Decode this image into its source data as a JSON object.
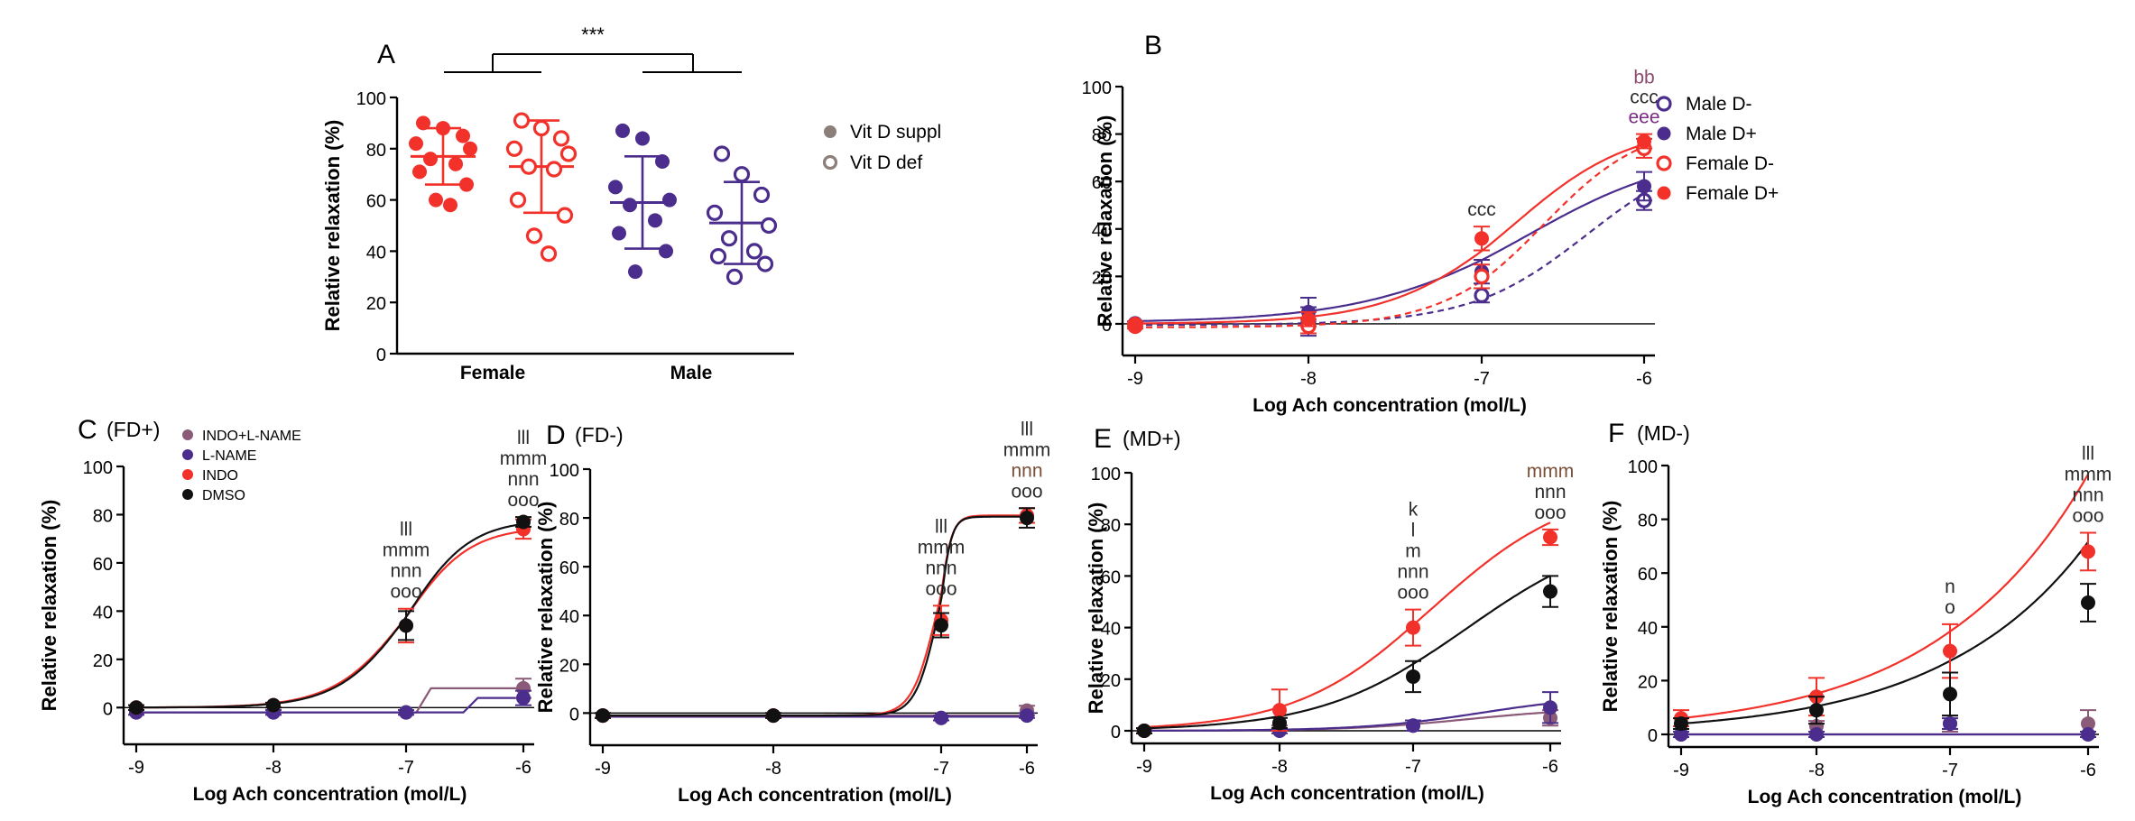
{
  "colors": {
    "red": "#f2312a",
    "purple": "#4a2d8c",
    "black": "#111111",
    "mauve": "#8b5a78",
    "ann_dark": "#2b2b2b",
    "ann_brown": "#7a4e38",
    "ann_purple": "#7a2a82",
    "ann_mauve": "#8b4a6e"
  },
  "chart_data": [
    {
      "panel": "A",
      "type": "scatter",
      "panel_label": "A",
      "significance": "***",
      "ylabel": "Relative relaxation (%)",
      "ylim": [
        0,
        100
      ],
      "yticks": [
        "0",
        "20",
        "40",
        "60",
        "80",
        "100"
      ],
      "groups": [
        {
          "name": "Female",
          "label": "Female",
          "color": "red",
          "series": [
            {
              "name": "Vit D suppl",
              "filled": true,
              "values": [
                90,
                88,
                85,
                82,
                80,
                76,
                74,
                71,
                66,
                60,
                58
              ],
              "mean": 77,
              "upper": 88,
              "lower": 66
            },
            {
              "name": "Vit D def",
              "filled": false,
              "values": [
                91,
                88,
                84,
                80,
                78,
                73,
                72,
                60,
                54,
                46,
                39
              ],
              "mean": 73,
              "upper": 91,
              "lower": 55
            }
          ]
        },
        {
          "name": "Male",
          "label": "Male",
          "color": "purple",
          "series": [
            {
              "name": "Vit D suppl",
              "filled": true,
              "values": [
                87,
                84,
                75,
                65,
                60,
                58,
                52,
                47,
                40,
                32
              ],
              "mean": 59,
              "upper": 77,
              "lower": 41
            },
            {
              "name": "Vit D def",
              "filled": false,
              "values": [
                78,
                70,
                62,
                55,
                50,
                45,
                40,
                38,
                35,
                30
              ],
              "mean": 51,
              "upper": 67,
              "lower": 35
            }
          ]
        }
      ],
      "legend": [
        {
          "label": "Vit D suppl",
          "filled": true
        },
        {
          "label": "Vit D def",
          "filled": false
        }
      ]
    },
    {
      "panel": "B",
      "type": "line",
      "panel_label": "B",
      "xlabel": "Log Ach concentration (mol/L)",
      "ylabel": "Relative relaxation (%)",
      "xlim": [
        -9,
        -6
      ],
      "ylim": [
        -8,
        100
      ],
      "xticks": [
        "-9",
        "-8",
        "-7",
        "-6"
      ],
      "yticks": [
        "0",
        "20",
        "40",
        "60",
        "80",
        "100"
      ],
      "x": [
        -9,
        -8,
        -7,
        -6
      ],
      "series": [
        {
          "name": "Male D-",
          "color": "purple",
          "filled": false,
          "dashed": true,
          "values": [
            0,
            1,
            12,
            52
          ],
          "err": [
            1,
            6,
            3,
            4
          ],
          "curve": {
            "bottom": -0.5,
            "top": 76,
            "ec50": -6.35,
            "hill": 1.2
          }
        },
        {
          "name": "Male D+",
          "color": "purple",
          "filled": true,
          "dashed": false,
          "values": [
            0,
            5,
            22,
            58
          ],
          "err": [
            1,
            6,
            5,
            6
          ],
          "curve": {
            "bottom": 0.5,
            "top": 74,
            "ec50": -6.72,
            "hill": 0.9
          }
        },
        {
          "name": "Female D-",
          "color": "red",
          "filled": false,
          "dashed": true,
          "values": [
            -1,
            -1,
            20,
            74
          ],
          "err": [
            1,
            3,
            5,
            4
          ],
          "curve": {
            "bottom": -1.5,
            "top": 85,
            "ec50": -6.62,
            "hill": 1.4
          }
        },
        {
          "name": "Female D+",
          "color": "red",
          "filled": true,
          "dashed": false,
          "values": [
            0,
            2,
            36,
            77
          ],
          "err": [
            1,
            3,
            5,
            3
          ],
          "curve": {
            "bottom": 0,
            "top": 84,
            "ec50": -6.8,
            "hill": 1.2
          }
        }
      ],
      "annotations": [
        {
          "x": -7,
          "lines": [
            "ccc"
          ],
          "colors": [
            "ann_dark"
          ]
        },
        {
          "x": -6,
          "lines": [
            "bb",
            "ccc",
            "eee"
          ],
          "colors": [
            "ann_mauve",
            "ann_dark",
            "ann_purple"
          ]
        }
      ]
    },
    {
      "panel": "C",
      "type": "line",
      "panel_label": "C",
      "condition": "(FD+)",
      "xlabel": "Log Ach concentration (mol/L)",
      "ylabel": "Relative relaxation (%)",
      "xlim": [
        -9,
        -6
      ],
      "ylim": [
        -10,
        100
      ],
      "xticks": [
        "-9",
        "-8",
        "-7",
        "-6"
      ],
      "yticks": [
        "0",
        "20",
        "40",
        "60",
        "80",
        "100"
      ],
      "x": [
        -9,
        -8,
        -7,
        -6
      ],
      "series": [
        {
          "name": "INDO+L-NAME",
          "color": "mauve",
          "values": [
            -2,
            -2,
            -2,
            8
          ],
          "err": [
            1,
            1,
            1,
            4
          ],
          "step": {
            "low": -2,
            "high": 8,
            "at": -6.85
          }
        },
        {
          "name": "L-NAME",
          "color": "purple",
          "values": [
            -2,
            -2,
            -2,
            4
          ],
          "err": [
            1,
            1,
            1,
            3
          ],
          "step": {
            "low": -2,
            "high": 4,
            "at": -6.45
          }
        },
        {
          "name": "INDO",
          "color": "red",
          "values": [
            0,
            1,
            34,
            74
          ],
          "err": [
            1,
            1,
            7,
            4
          ],
          "curve": {
            "bottom": 0,
            "top": 75,
            "ec50": -7.0,
            "hill": 1.6
          }
        },
        {
          "name": "DMSO",
          "color": "black",
          "values": [
            0,
            1,
            34,
            77
          ],
          "err": [
            1,
            1,
            6,
            2
          ],
          "curve": {
            "bottom": 0,
            "top": 78,
            "ec50": -6.98,
            "hill": 1.65
          }
        }
      ],
      "annotations": [
        {
          "x": -7,
          "lines": [
            "lll",
            "mmm",
            "nnn",
            "ooo"
          ],
          "colors": [
            "ann_dark",
            "ann_dark",
            "ann_dark",
            "ann_dark"
          ]
        },
        {
          "x": -6,
          "lines": [
            "lll",
            "mmm",
            "nnn",
            "ooo"
          ],
          "colors": [
            "ann_dark",
            "ann_dark",
            "ann_dark",
            "ann_dark"
          ]
        }
      ]
    },
    {
      "panel": "D",
      "type": "line",
      "panel_label": "D",
      "condition": "(FD-)",
      "xlabel": "Log Ach concentration (mol/L)",
      "ylabel": "Relative relaxation (%)",
      "xlim": [
        -9,
        -6
      ],
      "ylim": [
        -8,
        100
      ],
      "xticks": [
        "-9",
        "-8",
        "-7",
        "-6"
      ],
      "yticks": [
        "0",
        "20",
        "40",
        "60",
        "80",
        "100"
      ],
      "x": [
        -9,
        -8,
        -7,
        -6
      ],
      "series": [
        {
          "name": "INDO+L-NAME",
          "color": "mauve",
          "values": [
            -1,
            -1,
            -2,
            1
          ],
          "err": [
            1,
            1,
            1,
            2
          ],
          "flat": -1
        },
        {
          "name": "L-NAME",
          "color": "purple",
          "values": [
            -1,
            -1,
            -2,
            -1
          ],
          "err": [
            1,
            1,
            1,
            1
          ],
          "flat": -1.5
        },
        {
          "name": "INDO",
          "color": "red",
          "values": [
            -1,
            -1,
            38,
            81
          ],
          "err": [
            1,
            1,
            6,
            3
          ],
          "curve": {
            "bottom": -1,
            "top": 81,
            "ec50": -7.03,
            "hill": 6
          }
        },
        {
          "name": "DMSO",
          "color": "black",
          "values": [
            -1,
            -1,
            36,
            80
          ],
          "err": [
            1,
            1,
            5,
            4
          ],
          "curve": {
            "bottom": -1,
            "top": 80.5,
            "ec50": -7.02,
            "hill": 6.5
          }
        }
      ],
      "annotations": [
        {
          "x": -7,
          "lines": [
            "lll",
            "mmm",
            "nnn",
            "ooo"
          ],
          "colors": [
            "ann_dark",
            "ann_dark",
            "ann_dark",
            "ann_dark"
          ]
        },
        {
          "x": -6,
          "lines": [
            "lll",
            "mmm",
            "nnn",
            "ooo"
          ],
          "colors": [
            "ann_dark",
            "ann_dark",
            "ann_brown",
            "ann_dark"
          ]
        }
      ]
    },
    {
      "panel": "E",
      "type": "line",
      "panel_label": "E",
      "condition": "(MD+)",
      "xlabel": "Log Ach concentration (mol/L)",
      "ylabel": "Relative relaxation (%)",
      "xlim": [
        -9,
        -6
      ],
      "ylim": [
        0,
        100
      ],
      "xticks": [
        "-9",
        "-8",
        "-7",
        "-6"
      ],
      "yticks": [
        "0",
        "20",
        "40",
        "60",
        "80",
        "100"
      ],
      "x": [
        -9,
        -8,
        -7,
        -6
      ],
      "series": [
        {
          "name": "INDO+L-NAME",
          "color": "mauve",
          "values": [
            0,
            1,
            2,
            5
          ],
          "err": [
            1,
            1,
            2,
            3
          ],
          "curve": {
            "bottom": 0,
            "top": 9,
            "ec50": -6.6,
            "hill": 1
          }
        },
        {
          "name": "L-NAME",
          "color": "purple",
          "values": [
            0,
            0,
            2,
            9
          ],
          "err": [
            1,
            1,
            2,
            6
          ],
          "curve": {
            "bottom": 0,
            "top": 14,
            "ec50": -6.5,
            "hill": 1
          }
        },
        {
          "name": "INDO",
          "color": "red",
          "values": [
            0,
            8,
            40,
            75
          ],
          "err": [
            1,
            8,
            7,
            3
          ],
          "curve": {
            "bottom": 0,
            "top": 96,
            "ec50": -6.85,
            "hill": 0.85
          }
        },
        {
          "name": "DMSO",
          "color": "black",
          "values": [
            0,
            3,
            21,
            54
          ],
          "err": [
            1,
            2,
            6,
            6
          ],
          "curve": {
            "bottom": 0,
            "top": 80,
            "ec50": -6.6,
            "hill": 0.8
          }
        }
      ],
      "annotations": [
        {
          "x": -7,
          "lines": [
            "k",
            "l",
            "m",
            "nnn",
            "ooo"
          ],
          "colors": [
            "ann_dark",
            "ann_dark",
            "ann_dark",
            "ann_dark",
            "ann_dark"
          ]
        },
        {
          "x": -6,
          "lines": [
            "mmm",
            "nnn",
            "ooo"
          ],
          "colors": [
            "ann_brown",
            "ann_dark",
            "ann_dark"
          ]
        }
      ]
    },
    {
      "panel": "F",
      "type": "line",
      "panel_label": "F",
      "condition": "(MD-)",
      "xlabel": "Log Ach concentration (mol/L)",
      "ylabel": "Relative relaxation (%)",
      "xlim": [
        -9,
        -6
      ],
      "ylim": [
        0,
        100
      ],
      "xticks": [
        "-9",
        "-8",
        "-7",
        "-6"
      ],
      "yticks": [
        "0",
        "20",
        "40",
        "60",
        "80",
        "100"
      ],
      "x": [
        -9,
        -8,
        -7,
        -6
      ],
      "series": [
        {
          "name": "INDO+L-NAME",
          "color": "mauve",
          "values": [
            0,
            3,
            4,
            4
          ],
          "err": [
            1,
            2,
            3,
            5
          ],
          "flat": 0
        },
        {
          "name": "L-NAME",
          "color": "purple",
          "values": [
            0,
            0,
            4,
            0
          ],
          "err": [
            1,
            1,
            2,
            1
          ],
          "flat": 0
        },
        {
          "name": "INDO",
          "color": "red",
          "values": [
            6,
            14,
            31,
            68
          ],
          "err": [
            3,
            7,
            10,
            7
          ],
          "exp": {
            "a": 6,
            "k": 0.805
          }
        },
        {
          "name": "DMSO",
          "color": "black",
          "values": [
            4,
            9,
            15,
            49
          ],
          "err": [
            2,
            5,
            8,
            7
          ],
          "exp": {
            "a": 4,
            "k": 0.835
          }
        }
      ],
      "annotations": [
        {
          "x": -7,
          "lines": [
            "n",
            "o"
          ],
          "colors": [
            "ann_dark",
            "ann_dark"
          ]
        },
        {
          "x": -6,
          "lines": [
            "lll",
            "mmm",
            "nnn",
            "ooo"
          ],
          "colors": [
            "ann_dark",
            "ann_dark",
            "ann_dark",
            "ann_dark"
          ]
        }
      ]
    }
  ],
  "legend_c": [
    {
      "label": "INDO+L-NAME",
      "color": "mauve"
    },
    {
      "label": "L-NAME",
      "color": "purple"
    },
    {
      "label": "INDO",
      "color": "red"
    },
    {
      "label": "DMSO",
      "color": "black"
    }
  ]
}
